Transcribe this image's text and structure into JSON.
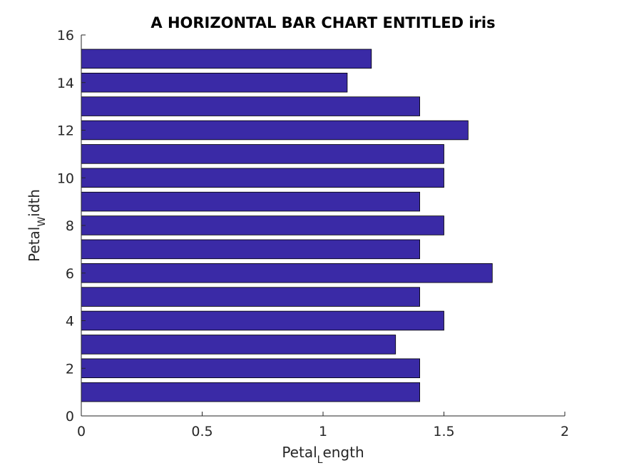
{
  "chart_data": {
    "type": "bar",
    "orientation": "horizontal",
    "title": "A HORIZONTAL BAR CHART ENTITLED iris",
    "xlabel": {
      "main": "Petal",
      "sub": "L",
      "rest": "ength"
    },
    "ylabel": {
      "main": "Petal",
      "sub": "W",
      "rest": "idth"
    },
    "xlim": [
      0,
      2
    ],
    "ylim": [
      0,
      16
    ],
    "xticks": [
      0,
      0.5,
      1,
      1.5,
      2
    ],
    "xtick_labels": [
      "0",
      "0.5",
      "1",
      "1.5",
      "2"
    ],
    "yticks": [
      0,
      2,
      4,
      6,
      8,
      10,
      12,
      14,
      16
    ],
    "ytick_labels": [
      "0",
      "2",
      "4",
      "6",
      "8",
      "10",
      "12",
      "14",
      "16"
    ],
    "categories": [
      1,
      2,
      3,
      4,
      5,
      6,
      7,
      8,
      9,
      10,
      11,
      12,
      13,
      14,
      15
    ],
    "values": [
      1.4,
      1.4,
      1.3,
      1.5,
      1.4,
      1.7,
      1.4,
      1.5,
      1.4,
      1.5,
      1.5,
      1.6,
      1.4,
      1.1,
      1.2
    ],
    "bar_color": "#3a2aa6",
    "grid": false,
    "legend": null
  }
}
